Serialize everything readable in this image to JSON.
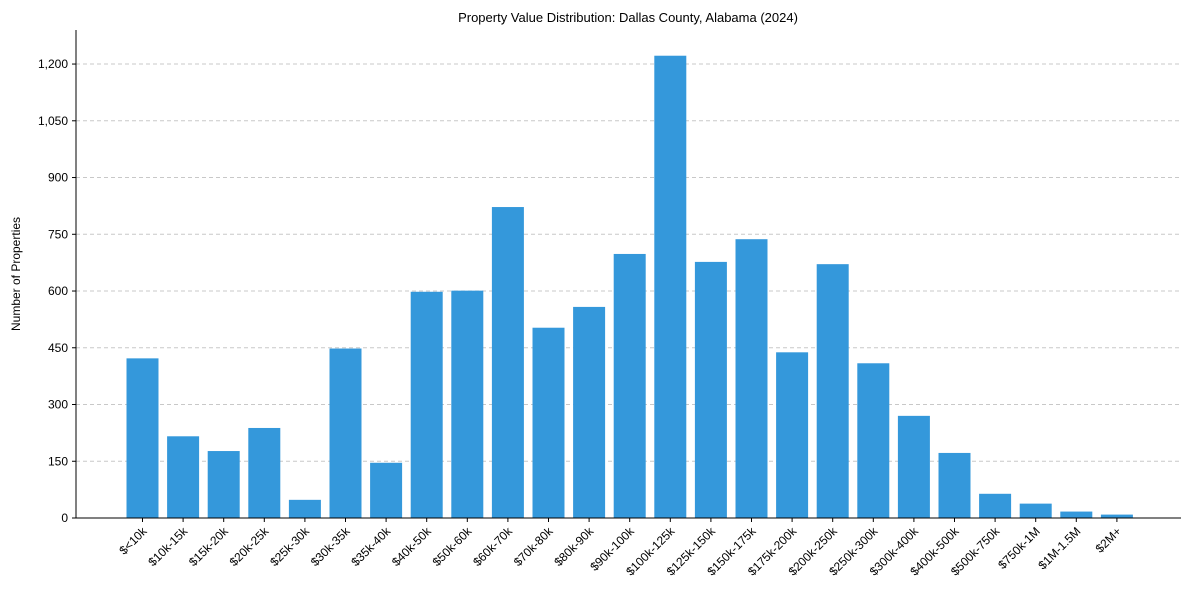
{
  "chart_data": {
    "type": "bar",
    "title": "Property Value Distribution: Dallas County, Alabama (2024)",
    "xlabel": "",
    "ylabel": "Number of Properties",
    "ylim": [
      0,
      1290
    ],
    "yticks": [
      0,
      150,
      300,
      450,
      600,
      750,
      900,
      1050,
      1200
    ],
    "ytick_labels": [
      "0",
      "150",
      "300",
      "450",
      "600",
      "750",
      "900",
      "1,050",
      "1,200"
    ],
    "grid": "horizontal dashed",
    "bar_color": "#3498db",
    "categories": [
      "$<10k",
      "$10k-15k",
      "$15k-20k",
      "$20k-25k",
      "$25k-30k",
      "$30k-35k",
      "$35k-40k",
      "$40k-50k",
      "$50k-60k",
      "$60k-70k",
      "$70k-80k",
      "$80k-90k",
      "$90k-100k",
      "$100k-125k",
      "$125k-150k",
      "$150k-175k",
      "$175k-200k",
      "$200k-250k",
      "$250k-300k",
      "$300k-400k",
      "$400k-500k",
      "$500k-750k",
      "$750k-1M",
      "$1M-1.5M",
      "$2M+"
    ],
    "values": [
      422,
      216,
      177,
      238,
      48,
      448,
      146,
      598,
      601,
      822,
      503,
      558,
      698,
      1222,
      677,
      737,
      438,
      671,
      409,
      270,
      172,
      64,
      38,
      17,
      9
    ]
  }
}
